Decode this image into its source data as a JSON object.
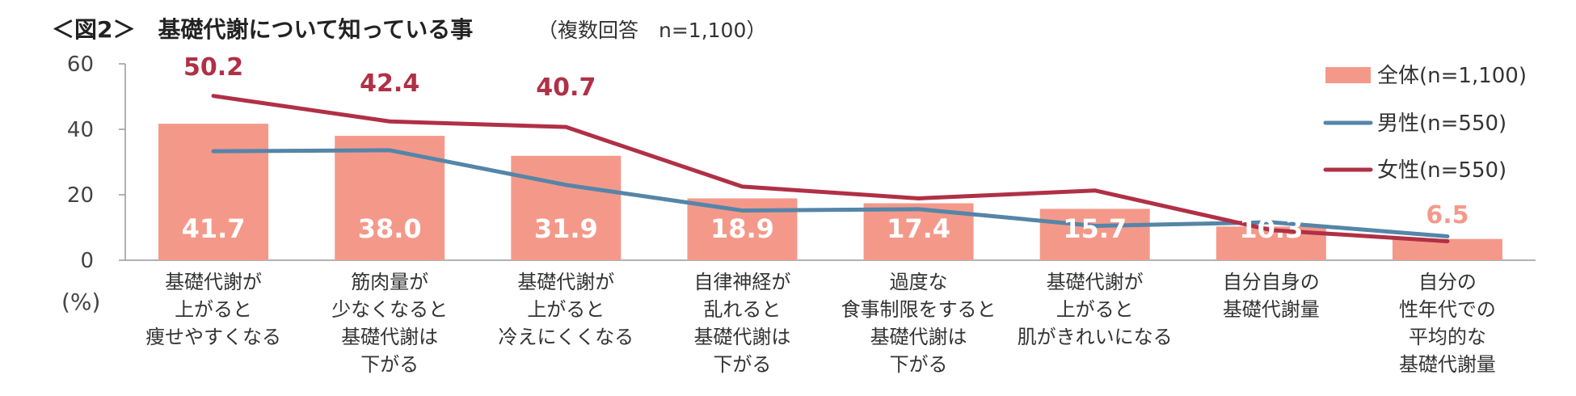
{
  "title": "＜図2＞　基礎代謝について知っている事",
  "subtitle": "（複数回答　n=1,100）",
  "chart_data": {
    "type": "bar",
    "categories": [
      [
        "基礎代謝が",
        "上がると",
        "痩せやすくなる"
      ],
      [
        "筋肉量が",
        "少なくなると",
        "基礎代謝は",
        "下がる"
      ],
      [
        "基礎代謝が",
        "上がると",
        "冷えにくくなる"
      ],
      [
        "自律神経が",
        "乱れると",
        "基礎代謝は",
        "下がる"
      ],
      [
        "過度な",
        "食事制限をすると",
        "基礎代謝は",
        "下がる"
      ],
      [
        "基礎代謝が",
        "上がると",
        "肌がきれいになる"
      ],
      [
        "自分自身の",
        "基礎代謝量"
      ],
      [
        "自分の",
        "性年代での",
        "平均的な",
        "基礎代謝量"
      ]
    ],
    "series": [
      {
        "name": "全体(n=1,100)",
        "type": "bar",
        "color": "#F4998A",
        "values": [
          41.7,
          38.0,
          31.9,
          18.9,
          17.4,
          15.7,
          10.3,
          6.5
        ]
      },
      {
        "name": "男性(n=550)",
        "type": "line",
        "color": "#5585A8",
        "values": [
          33.3,
          33.6,
          23.0,
          15.2,
          15.6,
          10.5,
          11.6,
          7.3
        ]
      },
      {
        "name": "女性(n=550)",
        "type": "line",
        "color": "#B03045",
        "values": [
          50.2,
          42.4,
          40.7,
          22.5,
          18.9,
          21.3,
          9.2,
          5.8
        ]
      }
    ],
    "bar_labels": [
      "41.7",
      "38.0",
      "31.9",
      "18.9",
      "17.4",
      "15.7",
      "10.3",
      ""
    ],
    "top_labels": [
      {
        "index": 0,
        "text": "50.2",
        "color": "#B03045"
      },
      {
        "index": 1,
        "text": "42.4",
        "color": "#B03045"
      },
      {
        "index": 2,
        "text": "40.7",
        "color": "#B03045"
      },
      {
        "index": 7,
        "text": "6.5",
        "color": "#F4998A"
      }
    ],
    "ylabel": "(%)",
    "ylim": [
      0,
      60
    ],
    "yticks": [
      0,
      20,
      40,
      60
    ],
    "grid": false,
    "legend_position": "top-right"
  }
}
